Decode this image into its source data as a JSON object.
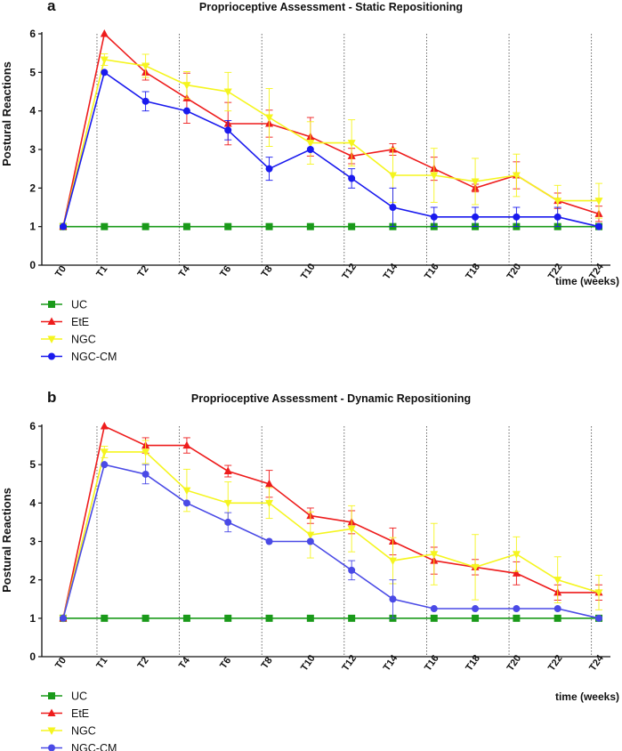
{
  "chart_data": [
    {
      "type": "line",
      "panel": "a",
      "title": "Proprioceptive Assessment - Static Repositioning",
      "xlabel": "time (weeks)",
      "ylabel": "Postural Reactions",
      "ylim": [
        0,
        6
      ],
      "yticks": [
        "0",
        "1",
        "2",
        "3",
        "4",
        "5",
        "6"
      ],
      "categories": [
        "T0",
        "T1",
        "T2",
        "T4",
        "T6",
        "T8",
        "T10",
        "T12",
        "T14",
        "T16",
        "T18",
        "T20",
        "T22",
        "T24"
      ],
      "legend_position": "bottom-left",
      "series": [
        {
          "name": "UC",
          "color": "#1a9a1a",
          "marker": "square",
          "values": [
            1,
            1,
            1,
            1,
            1,
            1,
            1,
            1,
            1,
            1,
            1,
            1,
            1,
            1
          ],
          "errors": [
            0,
            0,
            0,
            0,
            0,
            0,
            0,
            0,
            0,
            0,
            0,
            0,
            0,
            0
          ]
        },
        {
          "name": "EtE",
          "color": "#ee1c1c",
          "marker": "triangle-up",
          "values": [
            1,
            6,
            5,
            4.33,
            3.67,
            3.67,
            3.33,
            2.83,
            3,
            2.5,
            2,
            2.33,
            1.67,
            1.33
          ],
          "errors": [
            0,
            0,
            0.2,
            0.65,
            0.55,
            0.35,
            0.5,
            0.2,
            0.15,
            0.3,
            0.1,
            0.35,
            0.2,
            0.2
          ]
        },
        {
          "name": "NGC",
          "color": "#f5f51e",
          "marker": "triangle-down",
          "values": [
            1,
            5.33,
            5.17,
            4.67,
            4.5,
            3.83,
            3.17,
            3.17,
            2.33,
            2.33,
            2.17,
            2.33,
            1.67,
            1.67
          ],
          "errors": [
            0,
            0.15,
            0.3,
            0.35,
            0.5,
            0.75,
            0.55,
            0.6,
            0.7,
            0.7,
            0.6,
            0.55,
            0.4,
            0.45
          ]
        },
        {
          "name": "NGC-CM",
          "color": "#1a1aee",
          "marker": "circle",
          "values": [
            1,
            5,
            4.25,
            4,
            3.5,
            2.5,
            3,
            2.25,
            1.5,
            1.25,
            1.25,
            1.25,
            1.25,
            1
          ],
          "errors": [
            0,
            0,
            0.25,
            0,
            0.25,
            0.3,
            0,
            0.25,
            0.5,
            0.25,
            0.25,
            0.25,
            0.25,
            0
          ]
        }
      ]
    },
    {
      "type": "line",
      "panel": "b",
      "title": "Proprioceptive Assessment - Dynamic Repositioning",
      "xlabel": "time (weeks)",
      "ylabel": "Postural Reactions",
      "ylim": [
        0,
        6
      ],
      "yticks": [
        "0",
        "1",
        "2",
        "3",
        "4",
        "5",
        "6"
      ],
      "categories": [
        "T0",
        "T1",
        "T2",
        "T4",
        "T6",
        "T8",
        "T10",
        "T12",
        "T14",
        "T16",
        "T18",
        "T20",
        "T22",
        "T24"
      ],
      "legend_position": "bottom-left",
      "series": [
        {
          "name": "UC",
          "color": "#1a9a1a",
          "marker": "square",
          "values": [
            1,
            1,
            1,
            1,
            1,
            1,
            1,
            1,
            1,
            1,
            1,
            1,
            1,
            1
          ],
          "errors": [
            0,
            0,
            0,
            0,
            0,
            0,
            0,
            0,
            0,
            0,
            0,
            0,
            0,
            0
          ]
        },
        {
          "name": "EtE",
          "color": "#ee1c1c",
          "marker": "triangle-up",
          "values": [
            1,
            6,
            5.5,
            5.5,
            4.83,
            4.5,
            3.67,
            3.5,
            3,
            2.5,
            2.33,
            2.17,
            1.67,
            1.67
          ],
          "errors": [
            0,
            0,
            0.2,
            0.2,
            0.15,
            0.35,
            0.2,
            0.3,
            0.35,
            0.35,
            0.2,
            0.3,
            0.2,
            0.2
          ]
        },
        {
          "name": "NGC",
          "color": "#f5f51e",
          "marker": "triangle-down",
          "values": [
            1,
            5.33,
            5.33,
            4.33,
            4,
            4,
            3.17,
            3.33,
            2.5,
            2.67,
            2.33,
            2.67,
            2,
            1.67
          ],
          "errors": [
            0,
            0.15,
            0.3,
            0.55,
            0.55,
            0.4,
            0.6,
            0.6,
            0.6,
            0.8,
            0.85,
            0.45,
            0.6,
            0.45
          ]
        },
        {
          "name": "NGC-CM",
          "color": "#4a4ae6",
          "marker": "circle",
          "values": [
            1,
            5,
            4.75,
            4,
            3.5,
            3,
            3,
            2.25,
            1.5,
            1.25,
            1.25,
            1.25,
            1.25,
            1
          ],
          "errors": [
            0,
            0,
            0.25,
            0,
            0.25,
            0,
            0,
            0.25,
            0.5,
            0,
            0,
            0,
            0,
            0
          ]
        }
      ]
    }
  ]
}
